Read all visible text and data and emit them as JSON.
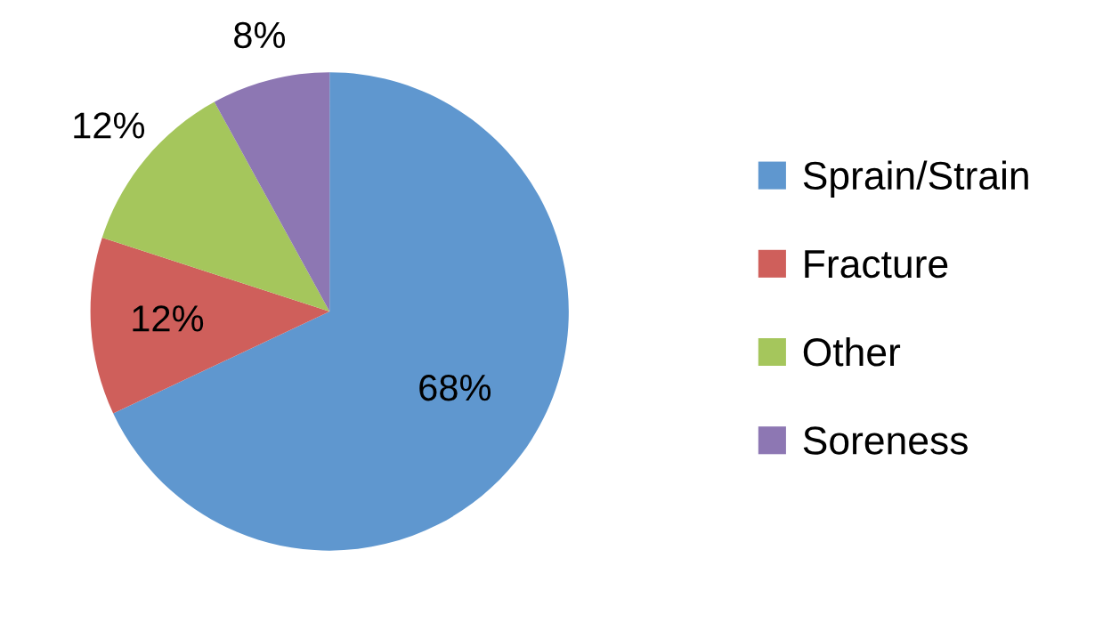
{
  "chart_data": {
    "type": "pie",
    "categories": [
      "Sprain/Strain",
      "Fracture",
      "Other",
      "Soreness"
    ],
    "values": [
      68,
      12,
      12,
      8
    ],
    "colors": [
      "#5f97cf",
      "#cf5f5b",
      "#a5c65c",
      "#8d77b3"
    ],
    "value_labels": [
      "68%",
      "12%",
      "12%",
      "8%"
    ],
    "legend": "right"
  }
}
